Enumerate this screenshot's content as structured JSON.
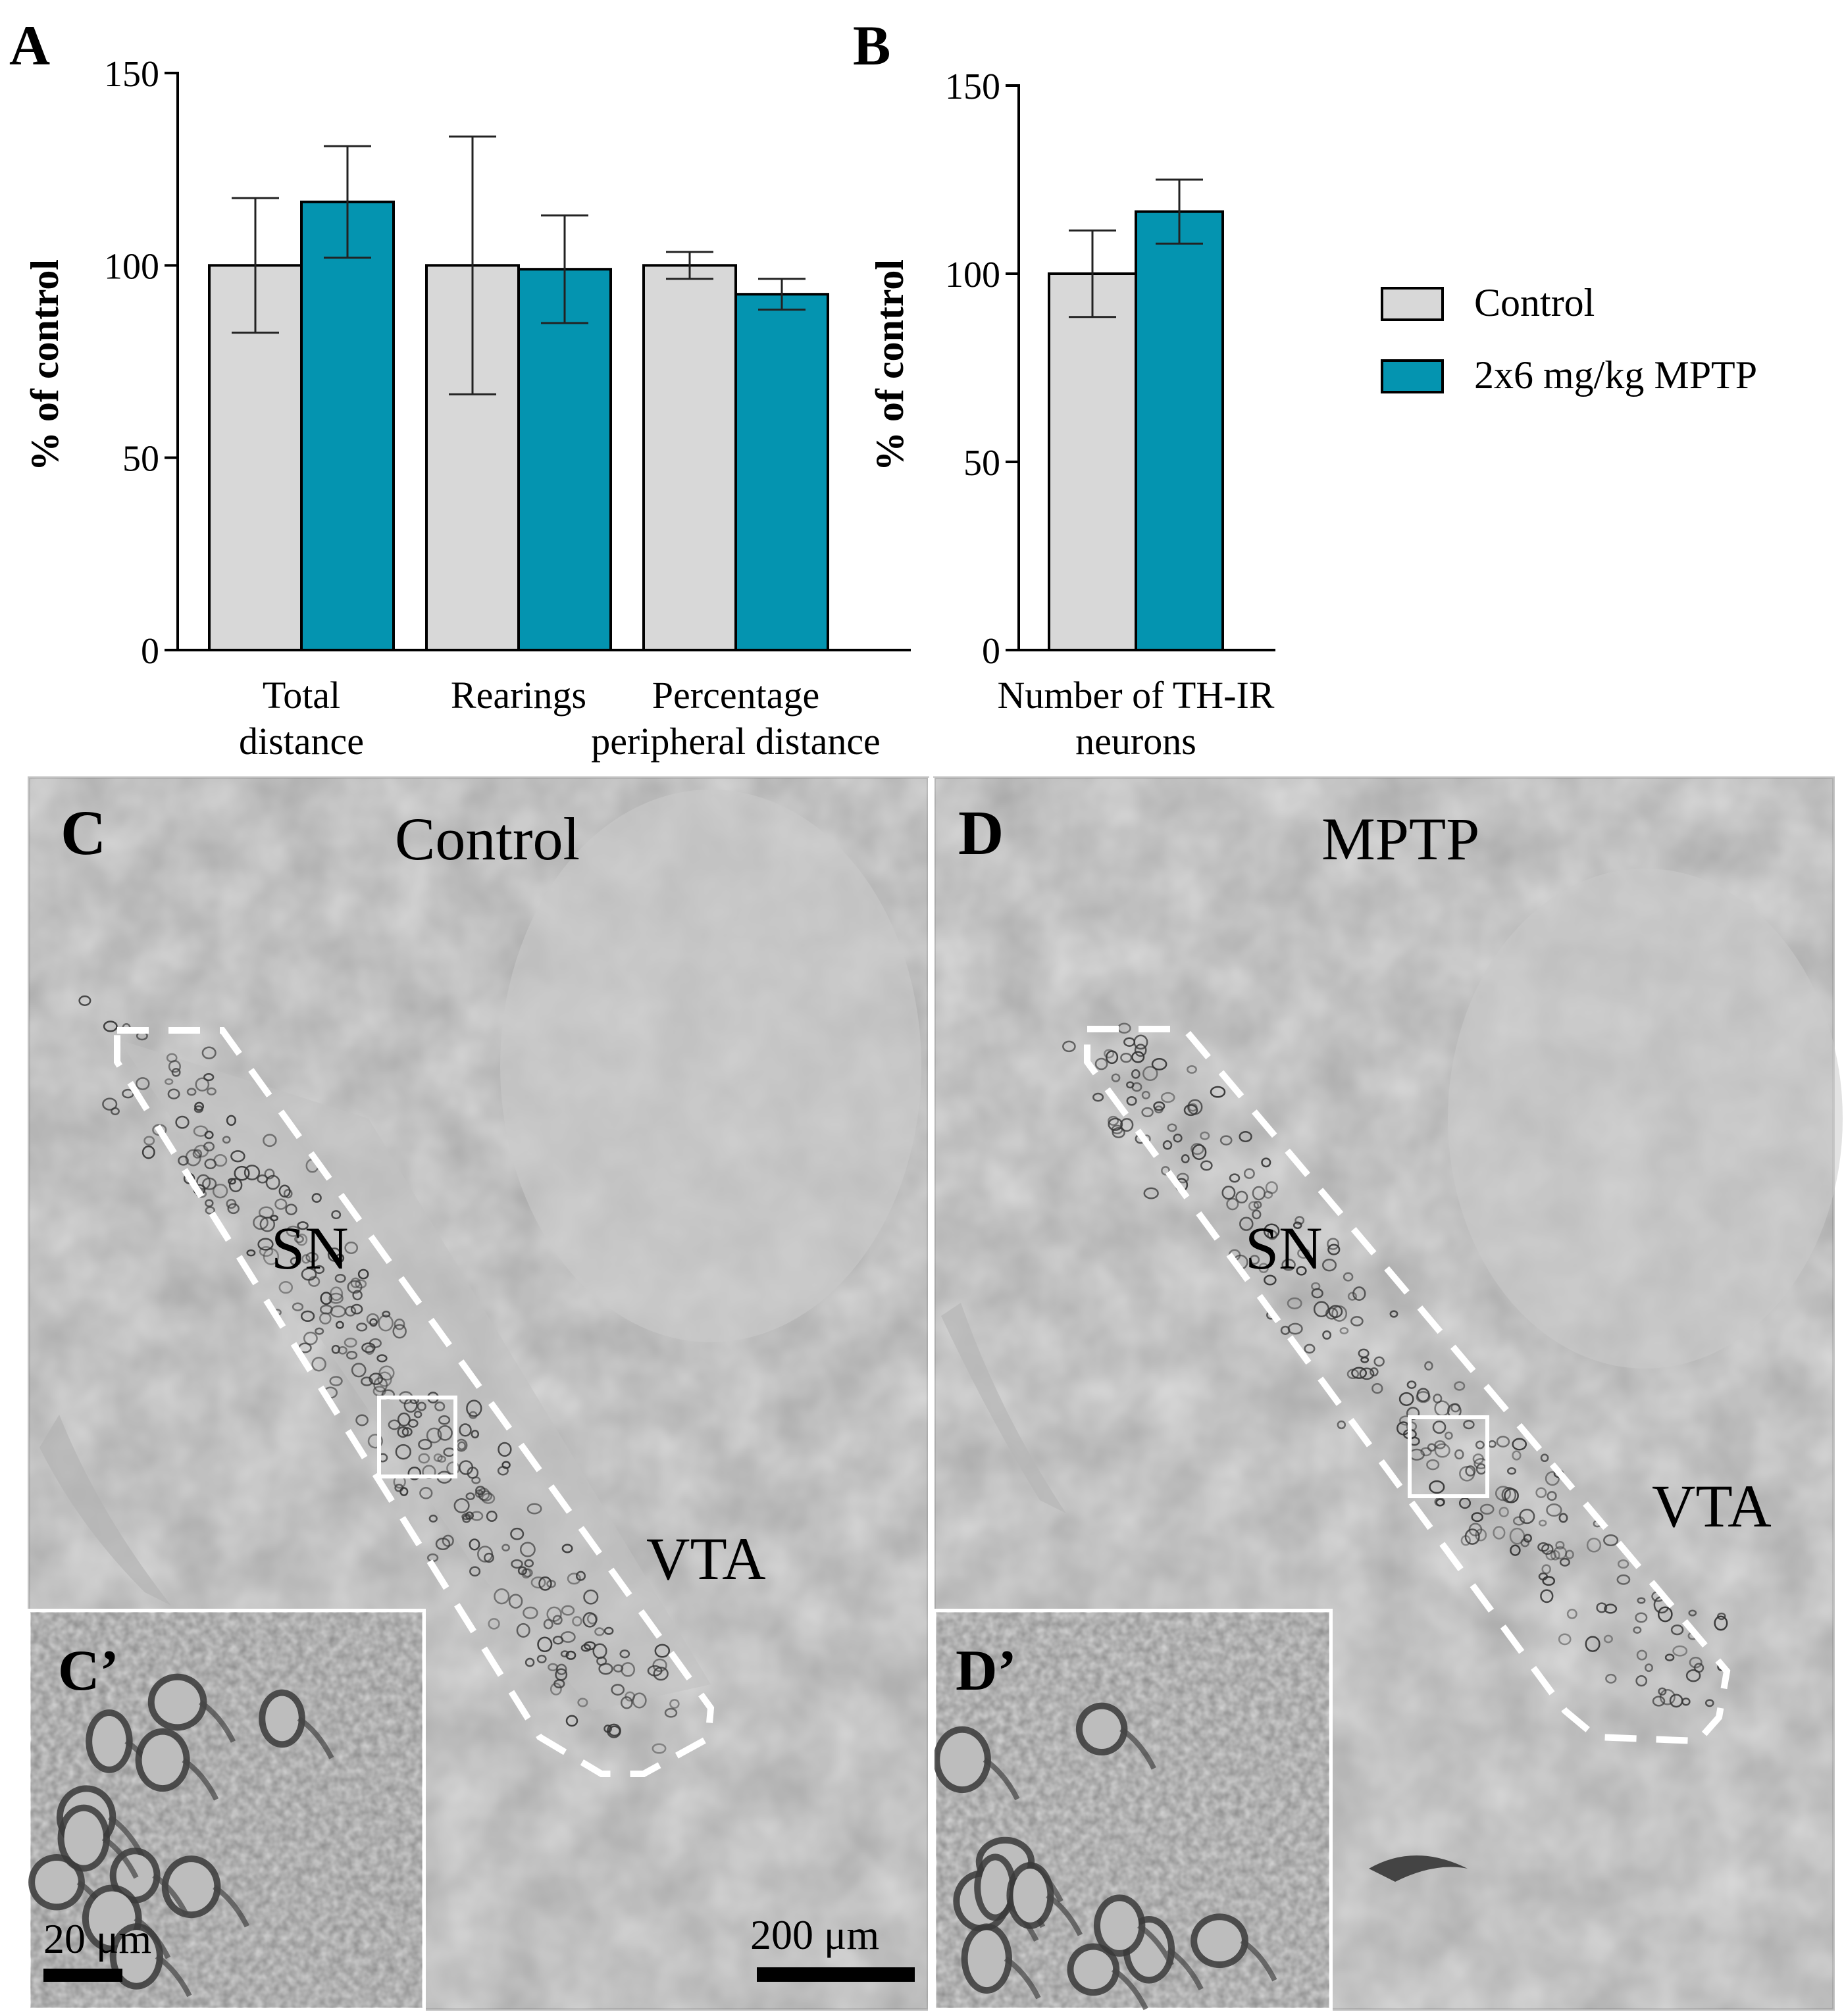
{
  "chart_data": [
    {
      "panel": "A",
      "type": "bar",
      "ylabel": "% of control",
      "ylim": [
        0,
        150
      ],
      "yticks": [
        0,
        50,
        100,
        150
      ],
      "categories": [
        [
          "Total",
          "distance"
        ],
        [
          "Rearings"
        ],
        [
          "Percentage",
          "peripheral distance"
        ]
      ],
      "series": [
        {
          "name": "Control",
          "color": "#d8d8d8",
          "values": [
            100,
            100,
            100
          ],
          "errors": [
            17.5,
            33.5,
            3.5
          ]
        },
        {
          "name": "2x6 mg/kg MPTP",
          "color": "#0494b0",
          "values": [
            116.5,
            99,
            92.5
          ],
          "errors": [
            14.5,
            14,
            4
          ]
        }
      ]
    },
    {
      "panel": "B",
      "type": "bar",
      "ylabel": "% of control",
      "ylim": [
        0,
        150
      ],
      "yticks": [
        0,
        50,
        100,
        150
      ],
      "categories": [
        [
          "Number of TH-IR",
          "neurons"
        ]
      ],
      "series": [
        {
          "name": "Control",
          "color": "#d8d8d8",
          "values": [
            100
          ],
          "errors": [
            11.5
          ]
        },
        {
          "name": "2x6 mg/kg MPTP",
          "color": "#0494b0",
          "values": [
            116.5
          ],
          "errors": [
            8.5
          ]
        }
      ]
    }
  ],
  "legend": [
    {
      "label": "Control",
      "color": "#d8d8d8"
    },
    {
      "label": "2x6 mg/kg MPTP",
      "color": "#0494b0"
    }
  ],
  "micrographs": {
    "C": {
      "letter": "C",
      "title": "Control",
      "sn": "SN",
      "vta": "VTA",
      "inset_letter": "C’",
      "inset_scale": "20 μm",
      "scale": "200 μm"
    },
    "D": {
      "letter": "D",
      "title": "MPTP",
      "sn": "SN",
      "vta": "VTA",
      "inset_letter": "D’"
    }
  }
}
